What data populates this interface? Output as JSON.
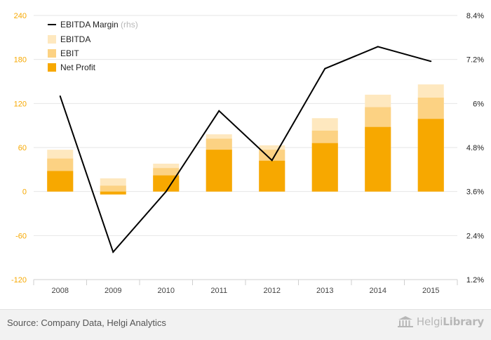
{
  "chart_data": {
    "type": "bar",
    "stacked": true,
    "categories": [
      "2008",
      "2009",
      "2010",
      "2011",
      "2012",
      "2013",
      "2014",
      "2015"
    ],
    "series": [
      {
        "name": "Net Profit",
        "values": [
          28,
          -4,
          22,
          57,
          42,
          66,
          88,
          99
        ],
        "color": "#f7a800"
      },
      {
        "name": "EBIT",
        "values": [
          45,
          8,
          32,
          72,
          57,
          83,
          115,
          128
        ],
        "color": "#fcd283"
      },
      {
        "name": "EBITDA",
        "values": [
          57,
          18,
          38,
          78,
          63,
          100,
          132,
          146
        ],
        "color": "#fee8bf"
      },
      {
        "name": "EBITDA Margin",
        "name_suffix": "(rhs)",
        "type": "line",
        "axis": "right",
        "values": [
          6.2,
          1.95,
          3.6,
          5.8,
          4.45,
          6.95,
          7.55,
          7.15
        ],
        "color": "#000000"
      }
    ],
    "left_axis": {
      "min": -120,
      "max": 240,
      "ticks": [
        "240",
        "180",
        "120",
        "60",
        "0",
        "-60",
        "-120"
      ],
      "tick_color": "#f7a800"
    },
    "right_axis": {
      "min": 1.2,
      "max": 8.4,
      "ticks": [
        "8.4%",
        "7.2%",
        "6%",
        "4.8%",
        "3.6%",
        "2.4%",
        "1.2%"
      ]
    },
    "grid": true,
    "legend": "top-left"
  },
  "footer": {
    "source": "Source: Company Data, Helgi Analytics",
    "logo_light": "Helgi",
    "logo_bold": "Library"
  }
}
